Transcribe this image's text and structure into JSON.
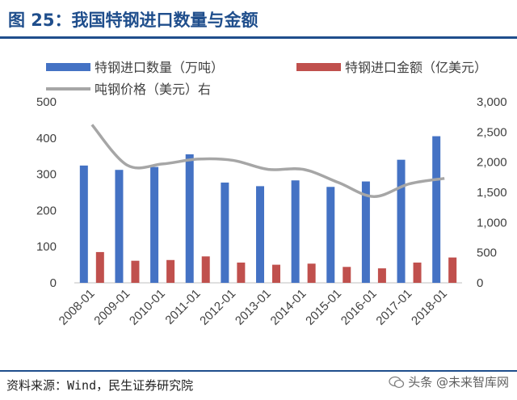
{
  "header": {
    "title": "图 25：我国特钢进口数量与金额"
  },
  "footer": {
    "source": "资料来源：Wind，民生证券研究院",
    "watermark": "头条 @未来智库网"
  },
  "colors": {
    "accent": "#1f4e8c",
    "volume": "#4472c4",
    "value": "#c0504d",
    "price": "#a6a6a6"
  },
  "chart_data": {
    "type": "bar",
    "title": "我国特钢进口数量与金额",
    "categories": [
      "2008-01",
      "2009-01",
      "2010-01",
      "2011-01",
      "2012-01",
      "2013-01",
      "2014-01",
      "2015-01",
      "2016-01",
      "2017-01",
      "2018-01"
    ],
    "series": [
      {
        "name": "特钢进口数量（万吨）",
        "type": "bar",
        "axis": "left",
        "values": [
          324,
          312,
          320,
          355,
          277,
          267,
          283,
          265,
          280,
          340,
          405
        ]
      },
      {
        "name": "特钢进口金额（亿美元）",
        "type": "bar",
        "axis": "left",
        "values": [
          85,
          61,
          63,
          73,
          56,
          50,
          53,
          44,
          40,
          56,
          70
        ]
      },
      {
        "name": "吨钢价格（美元）右",
        "type": "line",
        "axis": "right",
        "values": [
          2620,
          1950,
          1970,
          2050,
          2030,
          1880,
          1880,
          1660,
          1430,
          1640,
          1730
        ]
      }
    ],
    "y_left": {
      "ylim": [
        0,
        500
      ],
      "ticks": [
        "0",
        "100",
        "200",
        "300",
        "400",
        "500"
      ]
    },
    "y_right": {
      "ylim": [
        0,
        3000
      ],
      "ticks": [
        "0",
        "500",
        "1,000",
        "1,500",
        "2,000",
        "2,500",
        "3,000"
      ]
    },
    "legend_position": "top"
  }
}
